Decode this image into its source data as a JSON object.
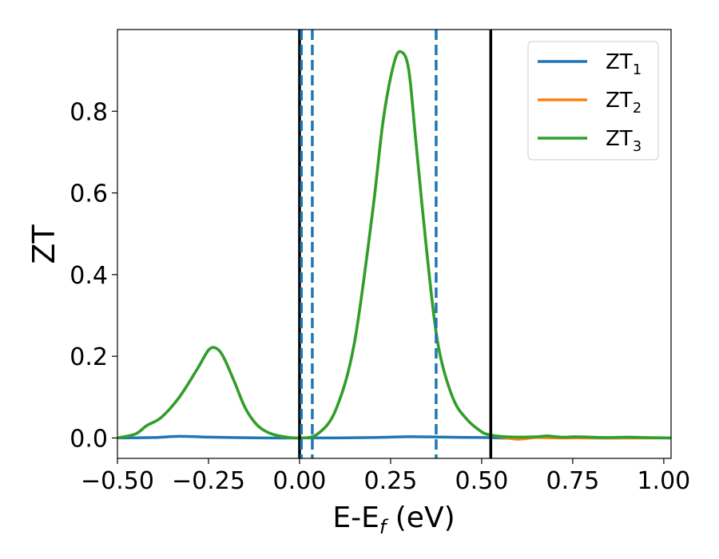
{
  "chart_data": {
    "type": "line",
    "title": "",
    "xlabel": {
      "main": "E-E",
      "sub": "f",
      "unit": " (eV)"
    },
    "ylabel": "ZT",
    "xlim": [
      -0.5,
      1.02
    ],
    "ylim": [
      -0.05,
      1.0
    ],
    "xticks": [
      -0.5,
      -0.25,
      0.0,
      0.25,
      0.5,
      0.75,
      1.0
    ],
    "xtick_labels": [
      "−0.50",
      "−0.25",
      "0.00",
      "0.25",
      "0.50",
      "0.75",
      "1.00"
    ],
    "yticks": [
      0.0,
      0.2,
      0.4,
      0.6,
      0.8
    ],
    "ytick_labels": [
      "0.0",
      "0.2",
      "0.4",
      "0.6",
      "0.8"
    ],
    "grid": false,
    "legend_position": "top-right",
    "series": [
      {
        "name": "ZT",
        "subscript": "1",
        "color": "#1f77b4",
        "x": [
          -0.5,
          -0.4,
          -0.33,
          -0.25,
          -0.1,
          0.0,
          0.1,
          0.2,
          0.3,
          0.4,
          0.5,
          0.55,
          0.6,
          0.65,
          0.7,
          0.8,
          0.9,
          1.02
        ],
        "y": [
          0.0,
          0.001,
          0.004,
          0.002,
          0.0,
          0.0,
          0.0,
          0.001,
          0.003,
          0.002,
          0.001,
          0.0,
          -0.001,
          0.002,
          0.001,
          0.0,
          0.0,
          0.0
        ]
      },
      {
        "name": "ZT",
        "subscript": "2",
        "color": "#ff7f0e",
        "x": [
          -0.5,
          -0.45,
          -0.42,
          -0.38,
          -0.33,
          -0.28,
          -0.25,
          -0.23,
          -0.21,
          -0.18,
          -0.15,
          -0.12,
          -0.09,
          -0.05,
          0.0,
          0.05,
          0.1,
          0.15,
          0.2,
          0.23,
          0.26,
          0.28,
          0.3,
          0.32,
          0.35,
          0.38,
          0.42,
          0.46,
          0.5,
          0.52,
          0.55,
          0.6,
          0.65,
          0.7,
          0.75,
          0.8,
          0.85,
          0.9,
          0.95,
          1.02
        ],
        "y": [
          0.0,
          0.01,
          0.03,
          0.05,
          0.1,
          0.17,
          0.215,
          0.22,
          0.2,
          0.14,
          0.075,
          0.035,
          0.015,
          0.004,
          0.0,
          0.01,
          0.07,
          0.23,
          0.55,
          0.78,
          0.92,
          0.945,
          0.9,
          0.72,
          0.45,
          0.23,
          0.1,
          0.045,
          0.015,
          0.008,
          0.003,
          -0.003,
          0.001,
          0.0,
          0.0,
          0.0,
          0.0,
          0.0,
          0.0,
          0.0
        ]
      },
      {
        "name": "ZT",
        "subscript": "3",
        "color": "#2ca02c",
        "x": [
          -0.5,
          -0.45,
          -0.42,
          -0.38,
          -0.33,
          -0.28,
          -0.25,
          -0.23,
          -0.21,
          -0.18,
          -0.15,
          -0.12,
          -0.09,
          -0.05,
          0.0,
          0.05,
          0.1,
          0.15,
          0.2,
          0.23,
          0.26,
          0.28,
          0.3,
          0.32,
          0.35,
          0.38,
          0.42,
          0.46,
          0.5,
          0.52,
          0.55,
          0.6,
          0.65,
          0.68,
          0.72,
          0.76,
          0.8,
          0.85,
          0.9,
          0.95,
          1.02
        ],
        "y": [
          0.0,
          0.01,
          0.03,
          0.05,
          0.1,
          0.17,
          0.215,
          0.22,
          0.2,
          0.14,
          0.075,
          0.035,
          0.015,
          0.004,
          0.0,
          0.01,
          0.07,
          0.23,
          0.55,
          0.78,
          0.92,
          0.945,
          0.9,
          0.72,
          0.45,
          0.23,
          0.1,
          0.045,
          0.015,
          0.008,
          0.004,
          0.002,
          0.003,
          0.005,
          0.002,
          0.003,
          0.002,
          0.001,
          0.002,
          0.001,
          0.0
        ]
      }
    ],
    "vlines": [
      {
        "x": 0.0,
        "style": "solid",
        "color": "#000000"
      },
      {
        "x": 0.005,
        "style": "dashed",
        "color": "#1f77b4"
      },
      {
        "x": 0.035,
        "style": "dashed",
        "color": "#1f77b4"
      },
      {
        "x": 0.375,
        "style": "dashed",
        "color": "#1f77b4"
      },
      {
        "x": 0.525,
        "style": "solid",
        "color": "#000000"
      }
    ]
  }
}
